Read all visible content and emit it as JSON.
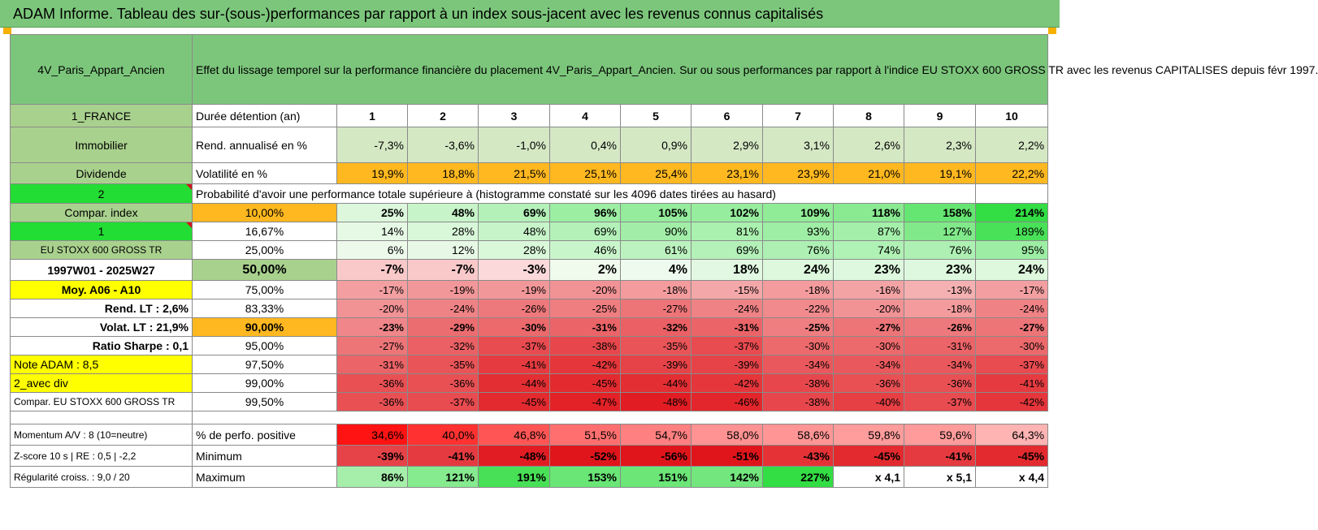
{
  "title": "ADAM Informe. Tableau des sur-(sous-)performances par rapport à un index sous-jacent avec les revenus connus capitalisés",
  "header": {
    "asset": "4V_Paris_Appart_Ancien",
    "description": "Effet du lissage temporel sur la performance financière du placement 4V_Paris_Appart_Ancien. Sur ou sous performances par rapport à l'indice EU STOXX 600 GROSS TR avec les revenus CAPITALISES depuis févr 1997."
  },
  "colors": {
    "green": "#7cc67c",
    "bright_green": "#22dd33",
    "orange": "#ffb81f",
    "yellow": "#ffff00",
    "red_text": "#d0141e"
  },
  "sidebar": {
    "country": "1_FRANCE",
    "category": "Immobilier",
    "dividend": "Dividende",
    "num2": "2",
    "compar_index": "Compar. index",
    "num1": "1",
    "index_name": "EU STOXX 600 GROSS TR",
    "period": "1997W01 - 2025W27",
    "moy": "Moy. A06 - A10",
    "rend_lt": "Rend. LT :   2,6%",
    "volat_lt": "Volat. LT :   21,9%",
    "sharpe": "Ratio Sharpe :   0,1",
    "note": "Note ADAM : 8,5",
    "div": "2_avec div",
    "compar_full": "Compar. EU STOXX 600 GROSS TR",
    "momentum": "Momentum A/V : 8 (10=neutre)",
    "zscore": "Z-score 10 s | RE : 0,5 | -2,2",
    "regularite": "Régularité croiss. : 9,0 / 20"
  },
  "years": [
    "1",
    "2",
    "3",
    "4",
    "5",
    "6",
    "7",
    "8",
    "9",
    "10"
  ],
  "rows": {
    "duree_label": "Durée détention (an)",
    "rend_label": "Rend. annualisé en %",
    "rend": [
      "-7,3%",
      "-3,6%",
      "-1,0%",
      "0,4%",
      "0,9%",
      "2,9%",
      "3,1%",
      "2,6%",
      "2,3%",
      "2,2%"
    ],
    "vol_label": "Volatilité en %",
    "vol": [
      "19,9%",
      "18,8%",
      "21,5%",
      "25,1%",
      "25,4%",
      "23,1%",
      "23,9%",
      "21,0%",
      "19,1%",
      "22,2%"
    ],
    "proba_label": "Probabilité d'avoir une performance totale supérieure à (histogramme constaté sur les 4096 dates tirées au hasard)"
  },
  "quantiles": [
    {
      "p": "10,00%",
      "v": [
        "25%",
        "48%",
        "69%",
        "96%",
        "105%",
        "102%",
        "109%",
        "118%",
        "158%",
        "214%"
      ]
    },
    {
      "p": "16,67%",
      "v": [
        "14%",
        "28%",
        "48%",
        "69%",
        "90%",
        "81%",
        "93%",
        "87%",
        "127%",
        "189%"
      ]
    },
    {
      "p": "25,00%",
      "v": [
        "6%",
        "12%",
        "28%",
        "46%",
        "61%",
        "69%",
        "76%",
        "74%",
        "76%",
        "95%"
      ]
    },
    {
      "p": "50,00%",
      "v": [
        "-7%",
        "-7%",
        "-3%",
        "2%",
        "4%",
        "18%",
        "24%",
        "23%",
        "23%",
        "24%"
      ]
    },
    {
      "p": "75,00%",
      "v": [
        "-17%",
        "-19%",
        "-19%",
        "-20%",
        "-18%",
        "-15%",
        "-18%",
        "-16%",
        "-13%",
        "-17%"
      ]
    },
    {
      "p": "83,33%",
      "v": [
        "-20%",
        "-24%",
        "-26%",
        "-25%",
        "-27%",
        "-24%",
        "-22%",
        "-20%",
        "-18%",
        "-24%"
      ]
    },
    {
      "p": "90,00%",
      "v": [
        "-23%",
        "-29%",
        "-30%",
        "-31%",
        "-32%",
        "-31%",
        "-25%",
        "-27%",
        "-26%",
        "-27%"
      ]
    },
    {
      "p": "95,00%",
      "v": [
        "-27%",
        "-32%",
        "-37%",
        "-38%",
        "-35%",
        "-37%",
        "-30%",
        "-30%",
        "-31%",
        "-30%"
      ]
    },
    {
      "p": "97,50%",
      "v": [
        "-31%",
        "-35%",
        "-41%",
        "-42%",
        "-39%",
        "-39%",
        "-34%",
        "-34%",
        "-34%",
        "-37%"
      ]
    },
    {
      "p": "99,00%",
      "v": [
        "-36%",
        "-36%",
        "-44%",
        "-45%",
        "-44%",
        "-42%",
        "-38%",
        "-36%",
        "-36%",
        "-41%"
      ]
    },
    {
      "p": "99,50%",
      "v": [
        "-36%",
        "-37%",
        "-45%",
        "-47%",
        "-48%",
        "-46%",
        "-38%",
        "-40%",
        "-37%",
        "-42%"
      ]
    }
  ],
  "bottom": {
    "pos_label": "% de perfo. positive",
    "pos": [
      "34,6%",
      "40,0%",
      "46,8%",
      "51,5%",
      "54,7%",
      "58,0%",
      "58,6%",
      "59,8%",
      "59,6%",
      "64,3%"
    ],
    "min_label": "Minimum",
    "min": [
      "-39%",
      "-41%",
      "-48%",
      "-52%",
      "-56%",
      "-51%",
      "-43%",
      "-45%",
      "-41%",
      "-45%"
    ],
    "max_label": "Maximum",
    "max": [
      "86%",
      "121%",
      "191%",
      "153%",
      "151%",
      "142%",
      "227%",
      "x 4,1",
      "x 5,1",
      "x 4,4"
    ]
  }
}
